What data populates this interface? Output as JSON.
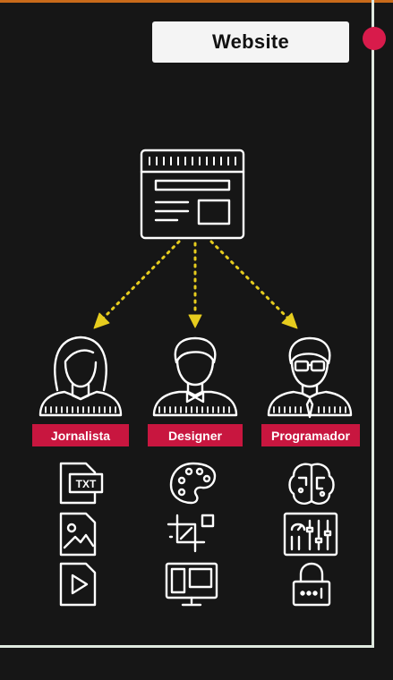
{
  "title": "Website",
  "roles": [
    {
      "label": "Jornalista",
      "icon": "woman-avatar-icon",
      "items": [
        "txt-file-icon",
        "image-file-icon",
        "video-file-icon"
      ],
      "item_text": {
        "txt": "TXT"
      }
    },
    {
      "label": "Designer",
      "icon": "bowtie-man-avatar-icon",
      "items": [
        "paint-palette-icon",
        "crop-tool-icon",
        "devices-icon"
      ]
    },
    {
      "label": "Programador",
      "icon": "glasses-man-avatar-icon",
      "items": [
        "brain-circuit-icon",
        "control-panel-icon",
        "password-lock-icon"
      ]
    }
  ],
  "colors": {
    "arrow": "#e6cc1e",
    "label_bg": "#c8163f",
    "title_bg": "#f4f4f4",
    "background": "#161616",
    "dot": "#d81b4b"
  }
}
